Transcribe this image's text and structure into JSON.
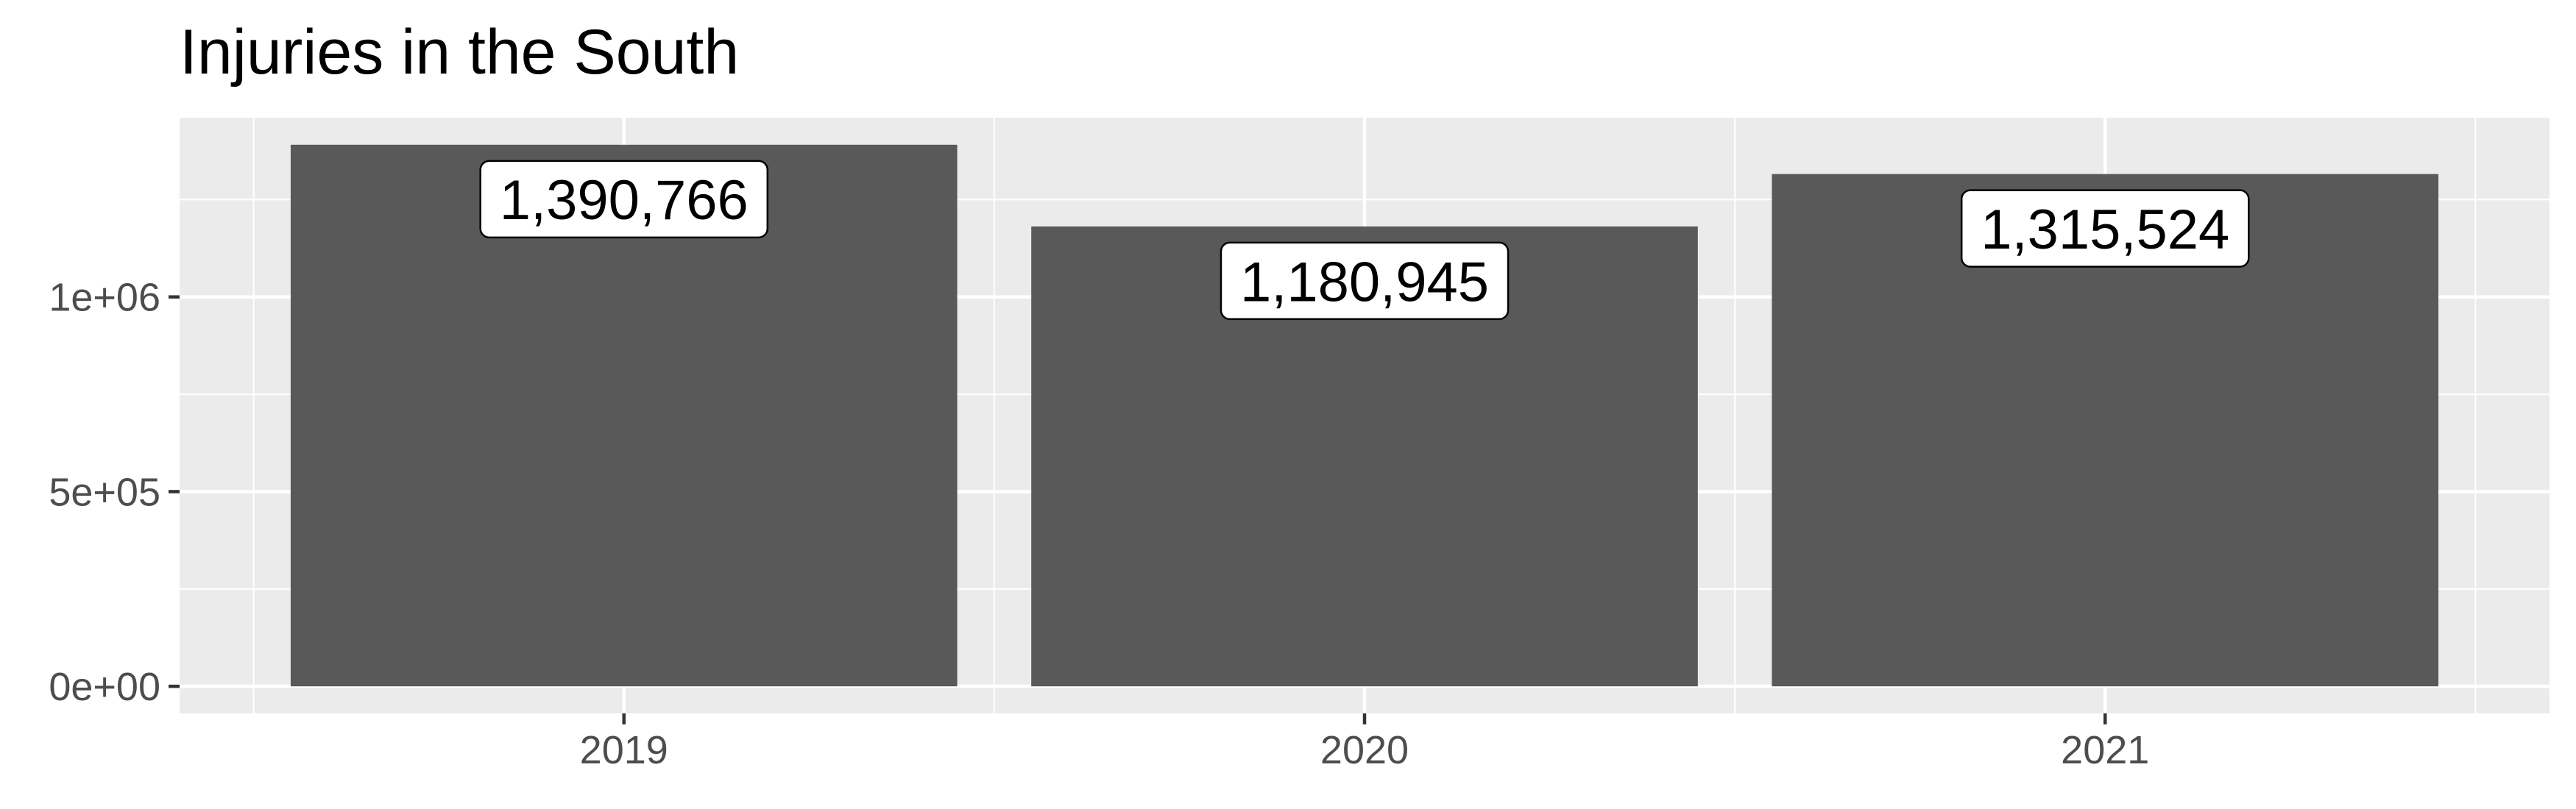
{
  "chart_data": {
    "type": "bar",
    "title": "Injuries in the South",
    "xlabel": "",
    "ylabel": "",
    "categories": [
      "2019",
      "2020",
      "2021"
    ],
    "values": [
      1390766,
      1180945,
      1315524
    ],
    "data_labels": [
      "1,390,766",
      "1,180,945",
      "1,315,524"
    ],
    "y_ticks": [
      {
        "value": 0,
        "label": "0e+00"
      },
      {
        "value": 500000,
        "label": "5e+05"
      },
      {
        "value": 1000000,
        "label": "1e+06"
      }
    ],
    "ylim": [
      -69538,
      1460304
    ],
    "grid": true,
    "legend": "none",
    "colors": {
      "bar": "#595959",
      "panel_background": "#ebebeb",
      "grid_line": "#ffffff",
      "label_fill": "#ffffff",
      "label_border": "#000000"
    }
  }
}
